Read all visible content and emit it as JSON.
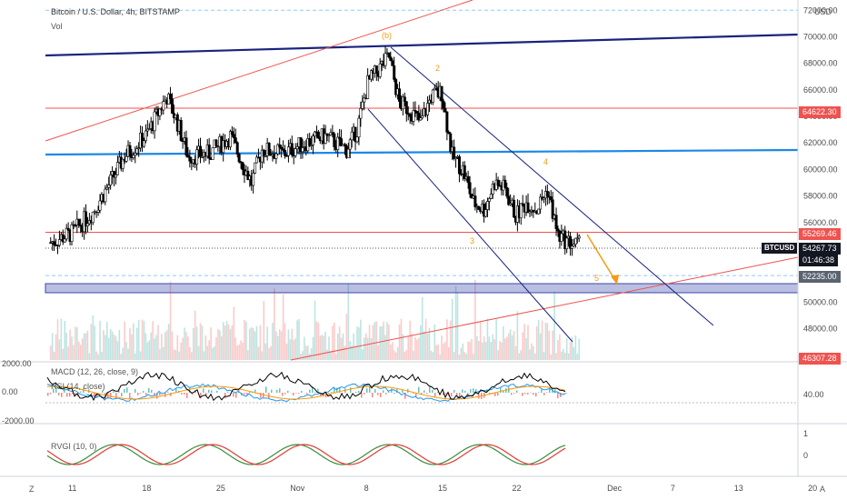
{
  "header": {
    "title": "Bitcoin / U.S. Dollar, 4h, BITSTAMP",
    "vol_label": "Vol",
    "currency": "USD"
  },
  "chart_data": [
    {
      "type": "candlestick",
      "title": "Bitcoin / U.S. Dollar, 4h, BITSTAMP",
      "ylabel": "USD",
      "ylim": [
        45500,
        72500
      ],
      "y_ticks": [
        "72000.00",
        "70000.00",
        "68000.00",
        "66000.00",
        "64000.00",
        "62000.00",
        "60000.00",
        "58000.00",
        "56000.00",
        "54000.00",
        "52000.00",
        "50000.00",
        "48000.00"
      ],
      "x_ticks": [
        "11",
        "18",
        "25",
        "Nov",
        "8",
        "15",
        "22",
        "Dec",
        "7",
        "13",
        "20"
      ],
      "close_path": [
        {
          "x": "Oct 9",
          "y": 54500
        },
        {
          "x": "Oct 11",
          "y": 55200
        },
        {
          "x": "Oct 13",
          "y": 56800
        },
        {
          "x": "Oct 15",
          "y": 59500
        },
        {
          "x": "Oct 16",
          "y": 61000
        },
        {
          "x": "Oct 18",
          "y": 62500
        },
        {
          "x": "Oct 20",
          "y": 65500
        },
        {
          "x": "Oct 21",
          "y": 63500
        },
        {
          "x": "Oct 22",
          "y": 61000
        },
        {
          "x": "Oct 24",
          "y": 61200
        },
        {
          "x": "Oct 26",
          "y": 62500
        },
        {
          "x": "Oct 28",
          "y": 59000
        },
        {
          "x": "Oct 29",
          "y": 61500
        },
        {
          "x": "Oct 31",
          "y": 61200
        },
        {
          "x": "Nov 2",
          "y": 62000
        },
        {
          "x": "Nov 4",
          "y": 62500
        },
        {
          "x": "Nov 6",
          "y": 61500
        },
        {
          "x": "Nov 7",
          "y": 63000
        },
        {
          "x": "Nov 8",
          "y": 66500
        },
        {
          "x": "Nov 9",
          "y": 67500
        },
        {
          "x": "Nov 10",
          "y": 68500
        },
        {
          "x": "Nov 11",
          "y": 65000
        },
        {
          "x": "Nov 12",
          "y": 64500
        },
        {
          "x": "Nov 13",
          "y": 63500
        },
        {
          "x": "Nov 14",
          "y": 65500
        },
        {
          "x": "Nov 15",
          "y": 65800
        },
        {
          "x": "Nov 16",
          "y": 61000
        },
        {
          "x": "Nov 17",
          "y": 60000
        },
        {
          "x": "Nov 18",
          "y": 57500
        },
        {
          "x": "Nov 19",
          "y": 57000
        },
        {
          "x": "Nov 20",
          "y": 59000
        },
        {
          "x": "Nov 21",
          "y": 58500
        },
        {
          "x": "Nov 22",
          "y": 56500
        },
        {
          "x": "Nov 23",
          "y": 57500
        },
        {
          "x": "Nov 24",
          "y": 57000
        },
        {
          "x": "Nov 25",
          "y": 58500
        },
        {
          "x": "Nov 26",
          "y": 55000
        },
        {
          "x": "Nov 27",
          "y": 54500
        },
        {
          "x": "Nov 28",
          "y": 54267.73
        }
      ],
      "price_tags": [
        {
          "value": "64622.30",
          "color": "#ef5350"
        },
        {
          "value": "55269.46",
          "color": "#ef5350"
        },
        {
          "value": "54267.73",
          "color": "#131722"
        },
        {
          "value": "01:46:38",
          "color": "#131722"
        },
        {
          "value": "52235.00",
          "color": "#5a6470"
        },
        {
          "value": "46307.28",
          "color": "#ef5350"
        }
      ],
      "current_symbol": "BTCUSD",
      "wave_labels": [
        "(b)",
        "2",
        "3",
        "4",
        "5"
      ]
    },
    {
      "type": "line",
      "title": "MACD (12, 26, close, 9) / RSI (14, close)",
      "ylabel": "",
      "y_ticks_left": [
        "2000.00",
        "0.00",
        "-2000.00"
      ],
      "y_ticks_right": [
        "40.00"
      ],
      "series": [
        {
          "name": "MACD",
          "color": "#2196f3"
        },
        {
          "name": "Signal",
          "color": "#ff9800"
        },
        {
          "name": "RSI",
          "color": "#000000"
        }
      ]
    },
    {
      "type": "line",
      "title": "RVGI (10, 0)",
      "y_ticks": [
        "1",
        "0"
      ],
      "series": [
        {
          "name": "RVGI",
          "color": "#388e3c"
        },
        {
          "name": "Signal",
          "color": "#e53935"
        }
      ]
    }
  ],
  "panes": {
    "macd_label": "MACD (12, 26, close, 9)",
    "rsi_label": "RSI (14, close)",
    "rvgi_label": "RVGI (10, 0)"
  },
  "bottom_bar": {
    "left": "Z",
    "right": "A"
  },
  "colors": {
    "blue_line": "#1e88e5",
    "navy_line": "#1a237e",
    "red_line": "#ef5350",
    "support_band": "#3949ab",
    "wave_orange": "#f39c12"
  }
}
